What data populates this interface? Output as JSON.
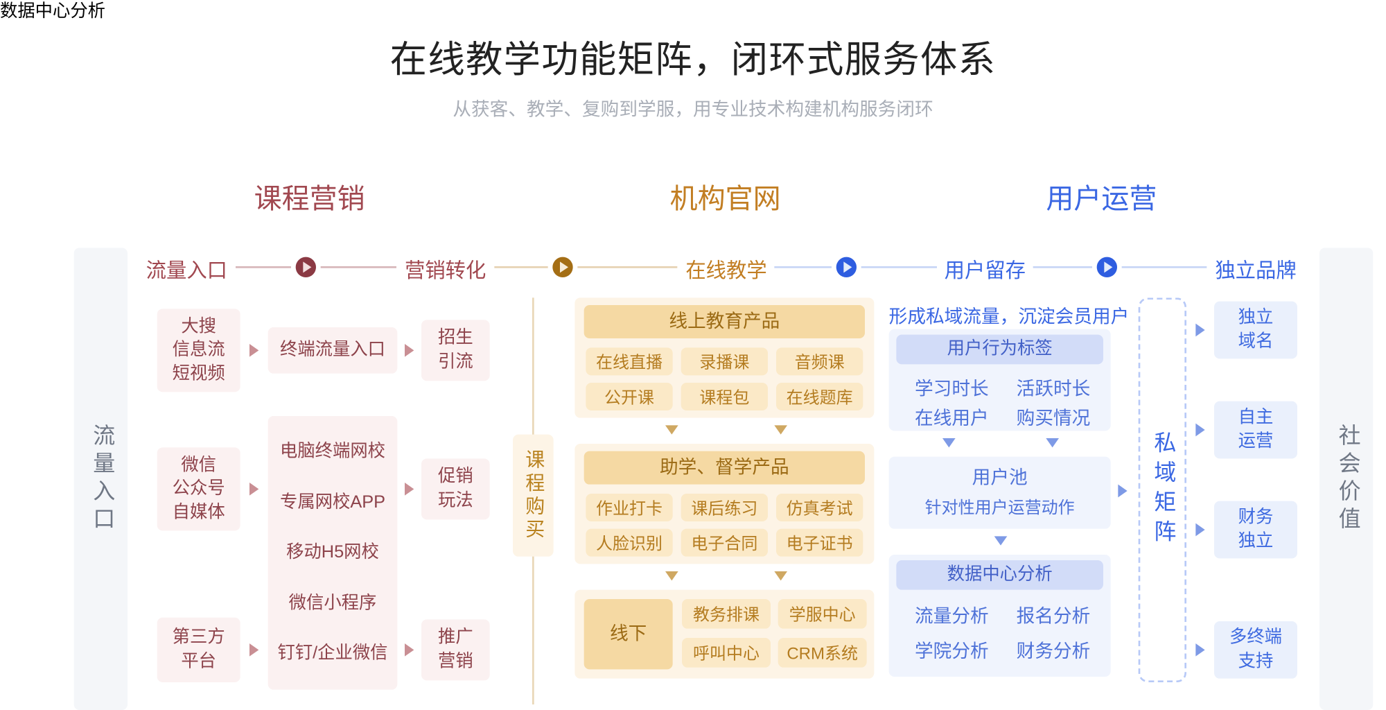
{
  "title": "在线教学功能矩阵，闭环式服务体系",
  "subtitle": "从获客、教学、复购到学服，用专业技术构建机构服务闭环",
  "sections": {
    "s1": "课程营销",
    "s2": "机构官网",
    "s3": "用户运营"
  },
  "headers": {
    "h1": "流量入口",
    "h2": "营销转化",
    "h3": "在线教学",
    "h4": "用户留存",
    "h5": "独立品牌"
  },
  "pillars": {
    "left": "流量入口",
    "mid": "课程购买",
    "right_dash": "私域矩阵",
    "far_right": "社会价值"
  },
  "col1": {
    "a": "大搜\n信息流\n短视频",
    "b": "微信\n公众号\n自媒体",
    "c": "第三方\n平台"
  },
  "col2": {
    "top": "终端流量入口",
    "items": {
      "i1": "电脑终端网校",
      "i2": "专属网校APP",
      "i3": "移动H5网校",
      "i4": "微信小程序",
      "i5": "钉钉/企业微信"
    }
  },
  "col3": {
    "a": "招生\n引流",
    "b": "促销\n玩法",
    "c": "推广\n营销"
  },
  "center": {
    "group1_title": "线上教育产品",
    "g1": {
      "a": "在线直播",
      "b": "录播课",
      "c": "音频课",
      "d": "公开课",
      "e": "课程包",
      "f": "在线题库"
    },
    "group2_title": "助学、督学产品",
    "g2": {
      "a": "作业打卡",
      "b": "课后练习",
      "c": "仿真考试",
      "d": "人脸识别",
      "e": "电子合同",
      "f": "电子证书"
    },
    "offline_label": "线下",
    "g3": {
      "a": "教务排课",
      "b": "学服中心",
      "c": "呼叫中心",
      "d": "CRM系统"
    }
  },
  "ops": {
    "caption": "形成私域流量，沉淀会员用户",
    "tag_title": "用户行为标签",
    "tags": {
      "a": "学习时长",
      "b": "活跃时长",
      "c": "在线用户",
      "d": "购买情况"
    },
    "pool_title": "用户池",
    "pool_sub": "针对性用户运营动作",
    "data_title": "数据中心分析",
    "data": {
      "a": "流量分析",
      "b": "报名分析",
      "c": "学院分析",
      "d": "财务分析"
    }
  },
  "brand": {
    "a": "独立\n域名",
    "b": "自主\n运营",
    "c": "财务\n独立",
    "d": "多终端\n支持"
  },
  "colors": {
    "red_line": "#d7b6b9",
    "red_play_bg": "#8b3a44",
    "red_play_tri": "#f3dfe0",
    "brown_line": "#e6d2b2",
    "brown_play_bg": "#a46e15",
    "brown_play_tri": "#f7ecd9",
    "blue_line": "#c7d5f6",
    "blue_play_bg": "#2e5de0",
    "blue_play_tri": "#e3ebfb",
    "red_txt": "#a14850",
    "brown_txt": "#c27e23",
    "blue_txt": "#3a67e3",
    "red_box_bg": "#fbf1f1",
    "red_box_txt": "#8d434b",
    "brown_panel_bg": "#fdf4e6",
    "brown_head_bg": "#f5d9a3",
    "brown_pill_bg": "#fbe9c7",
    "brown_pill_txt": "#b47c20",
    "blue_panel_bg": "#f0f4fd",
    "blue_head_bg": "#d2dcf8",
    "blue_pill_txt": "#4e72d8",
    "blue_box_bg": "#eaf0fc",
    "blue_box_txt": "#3e6ae0",
    "gray_pillar_bg": "#f4f6f9",
    "gray_pillar_txt": "#6f7785",
    "tri_red": "#c98f94",
    "tri_brown": "#cfa862",
    "tri_blue": "#7e9ae6"
  }
}
